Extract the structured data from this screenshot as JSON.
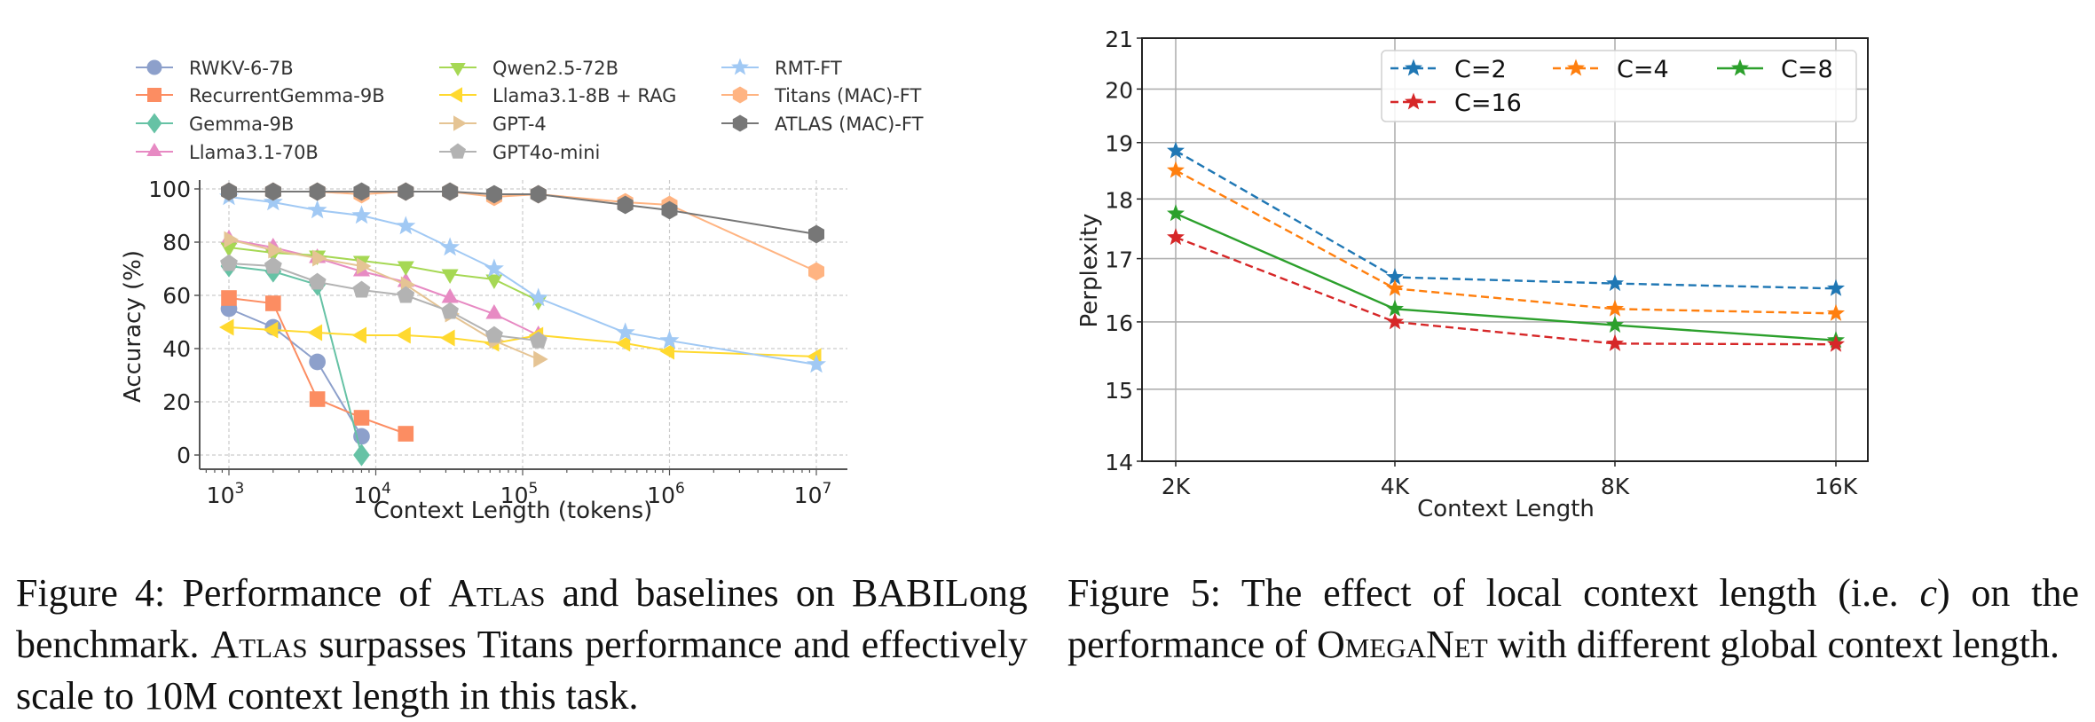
{
  "chart_data": [
    {
      "type": "line",
      "title": "",
      "xlabel": "Context Length (tokens)",
      "ylabel": "Accuracy (%)",
      "xscale": "log",
      "xlim": [
        650,
        14000000
      ],
      "ylim": [
        -4,
        104
      ],
      "xticks": [
        1000,
        10000,
        100000,
        1000000,
        10000000
      ],
      "xtick_labels": [
        "10",
        "10",
        "10",
        "10",
        "10"
      ],
      "xtick_exponents": [
        "3",
        "4",
        "5",
        "6",
        "7"
      ],
      "yticks": [
        0,
        20,
        40,
        60,
        80,
        100
      ],
      "ytick_labels": [
        "0",
        "20",
        "40",
        "60",
        "80",
        "100"
      ],
      "grid": true,
      "legend_placement": "top",
      "series": [
        {
          "name": "RWKV-6-7B",
          "color": "#8da0cb",
          "marker": "circle",
          "x": [
            1000,
            2000,
            4000,
            8000
          ],
          "values": [
            55,
            48,
            35,
            7
          ]
        },
        {
          "name": "RecurrentGemma-9B",
          "color": "#fc8d62",
          "marker": "square",
          "x": [
            1000,
            2000,
            4000,
            8000,
            16000
          ],
          "values": [
            59,
            57,
            21,
            14,
            8
          ]
        },
        {
          "name": "Gemma-9B",
          "color": "#66c2a5",
          "marker": "diamond",
          "x": [
            1000,
            2000,
            4000,
            8000
          ],
          "values": [
            71,
            69,
            64,
            0
          ]
        },
        {
          "name": "Llama3.1-70B",
          "color": "#e78ac3",
          "marker": "triangle-up",
          "x": [
            1000,
            2000,
            4000,
            8000,
            16000,
            32000,
            64000,
            128000
          ],
          "values": [
            81,
            78,
            74,
            69,
            65,
            59,
            53,
            45
          ]
        },
        {
          "name": "Qwen2.5-72B",
          "color": "#a6d854",
          "marker": "triangle-down",
          "x": [
            1000,
            2000,
            4000,
            8000,
            16000,
            32000,
            64000,
            128000
          ],
          "values": [
            78,
            76,
            75,
            73,
            71,
            68,
            66,
            58
          ]
        },
        {
          "name": "Llama3.1-8B + RAG",
          "color": "#ffd92f",
          "marker": "triangle-left",
          "x": [
            1000,
            2000,
            4000,
            8000,
            16000,
            32000,
            64000,
            128000,
            500000,
            1000000,
            10000000
          ],
          "values": [
            48,
            47,
            46,
            45,
            45,
            44,
            42,
            45,
            42,
            39,
            37
          ]
        },
        {
          "name": "GPT-4",
          "color": "#e5c494",
          "marker": "triangle-right",
          "x": [
            1000,
            2000,
            4000,
            8000,
            16000,
            32000,
            64000,
            128000
          ],
          "values": [
            81,
            77,
            74,
            71,
            64,
            53,
            43,
            36
          ]
        },
        {
          "name": "GPT4o-mini",
          "color": "#b3b3b3",
          "marker": "pentagon",
          "x": [
            1000,
            2000,
            4000,
            8000,
            16000,
            32000,
            64000,
            128000
          ],
          "values": [
            72,
            71,
            65,
            62,
            60,
            54,
            45,
            43
          ]
        },
        {
          "name": "RMT-FT",
          "color": "#a1c9f4",
          "marker": "star",
          "x": [
            1000,
            2000,
            4000,
            8000,
            16000,
            32000,
            64000,
            128000,
            500000,
            1000000,
            10000000
          ],
          "values": [
            97,
            95,
            92,
            90,
            86,
            78,
            70,
            59,
            46,
            43,
            34
          ]
        },
        {
          "name": "Titans (MAC)-FT",
          "color": "#ffb482",
          "marker": "hexagon",
          "x": [
            1000,
            2000,
            4000,
            8000,
            16000,
            32000,
            64000,
            128000,
            500000,
            1000000,
            10000000
          ],
          "values": [
            99,
            99,
            99,
            98,
            99,
            99,
            97,
            98,
            95,
            94,
            69
          ]
        },
        {
          "name": "ATLAS (MAC)-FT",
          "color": "#777777",
          "marker": "hexagon",
          "x": [
            1000,
            2000,
            4000,
            8000,
            16000,
            32000,
            64000,
            128000,
            500000,
            1000000,
            10000000
          ],
          "values": [
            99,
            99,
            99,
            99,
            99,
            99,
            98,
            98,
            94,
            92,
            83
          ]
        }
      ]
    },
    {
      "type": "line",
      "title": "",
      "xlabel": "Context Length",
      "ylabel": "Perplexity",
      "yscale": "log",
      "categories": [
        "2K",
        "4K",
        "8K",
        "16K"
      ],
      "ylim": [
        14,
        21
      ],
      "yticks": [
        14,
        15,
        16,
        17,
        18,
        19,
        20,
        21
      ],
      "ytick_labels": [
        "14",
        "15",
        "16",
        "17",
        "18",
        "19",
        "20",
        "21"
      ],
      "grid": true,
      "legend_placement": "top-right",
      "series": [
        {
          "name": "C=2",
          "color": "#1f77b4",
          "linestyle": "dashed",
          "marker": "star",
          "values": [
            18.85,
            16.7,
            16.6,
            16.52
          ]
        },
        {
          "name": "C=4",
          "color": "#ff7f0e",
          "linestyle": "dashed",
          "marker": "star",
          "values": [
            18.5,
            16.52,
            16.2,
            16.13
          ]
        },
        {
          "name": "C=8",
          "color": "#2ca02c",
          "linestyle": "solid",
          "marker": "star",
          "values": [
            17.75,
            16.2,
            15.95,
            15.72
          ]
        },
        {
          "name": "C=16",
          "color": "#d62728",
          "linestyle": "dashed",
          "marker": "star",
          "values": [
            17.35,
            16.0,
            15.67,
            15.66
          ]
        }
      ]
    }
  ],
  "captions": {
    "fig4": {
      "prefix": "Figure 4: Performance of ",
      "name1": "Atlas",
      "mid1": " and baselines on BABILong benchmark. ",
      "name2": "Atlas",
      "rest": " surpasses Titans performance and effectively scale to 10M context length in this task."
    },
    "fig5": {
      "prefix": "Figure 5: The effect of local context length (i.e. ",
      "var": "c",
      "mid": ") on the performance of ",
      "name": "OmegaNet",
      "rest": " with different global context length."
    }
  }
}
